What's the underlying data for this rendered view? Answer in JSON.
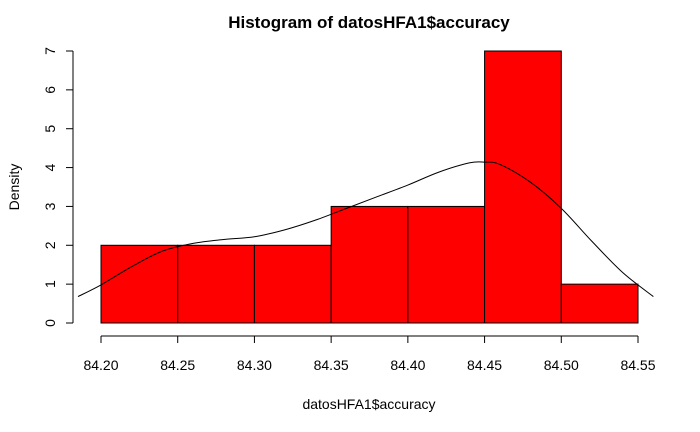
{
  "chart_data": {
    "type": "bar",
    "subtype": "histogram",
    "title": "Histogram of datosHFA1$accuracy",
    "xlabel": "datosHFA1$accuracy",
    "ylabel": "Density",
    "bin_edges": [
      84.2,
      84.25,
      84.3,
      84.35,
      84.4,
      84.45,
      84.5,
      84.55
    ],
    "values": [
      2,
      2,
      2,
      3,
      3,
      7,
      1
    ],
    "bar_color": "#ff0000",
    "x_ticks": [
      "84.20",
      "84.25",
      "84.30",
      "84.35",
      "84.40",
      "84.45",
      "84.50",
      "84.55"
    ],
    "y_ticks": [
      "0",
      "1",
      "2",
      "3",
      "4",
      "5",
      "6",
      "7"
    ],
    "xlim": [
      84.2,
      84.55
    ],
    "ylim": [
      0,
      7
    ],
    "grid": false,
    "density_curve": {
      "x": [
        84.185,
        84.2,
        84.22,
        84.24,
        84.26,
        84.28,
        84.3,
        84.32,
        84.34,
        84.36,
        84.38,
        84.4,
        84.42,
        84.44,
        84.45,
        84.46,
        84.48,
        84.5,
        84.52,
        84.54,
        84.56
      ],
      "y": [
        0.68,
        0.98,
        1.45,
        1.85,
        2.05,
        2.15,
        2.22,
        2.4,
        2.65,
        2.95,
        3.25,
        3.55,
        3.88,
        4.12,
        4.14,
        4.08,
        3.62,
        2.95,
        2.1,
        1.3,
        0.68
      ]
    }
  }
}
